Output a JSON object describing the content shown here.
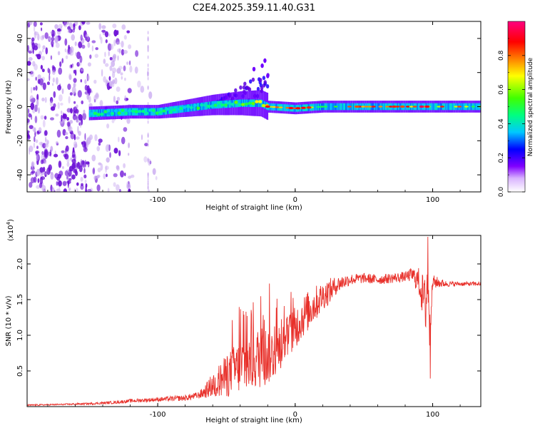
{
  "figure_title": "C2E4.2025.359.11.40.G31",
  "chart_data": [
    {
      "type": "heatmap",
      "title": "C2E4.2025.359.11.40.G31",
      "xlabel": "Height of straight line (km)",
      "ylabel": "Frequency (Hz)",
      "xlim": [
        -195,
        135
      ],
      "ylim": [
        -50,
        50
      ],
      "x_ticks": [
        -100,
        0,
        100
      ],
      "y_ticks": [
        -40,
        -20,
        0,
        20,
        40
      ],
      "colorbar": {
        "label": "Normalized spectral amplitude",
        "range": [
          0,
          1
        ],
        "ticks": [
          0.0,
          0.2,
          0.4,
          0.6,
          0.8
        ],
        "colors": [
          "#ffffff",
          "#8000ff",
          "#0000ff",
          "#00c8ff",
          "#00ff80",
          "#80ff00",
          "#ffff00",
          "#ff8000",
          "#ff0000",
          "#ff0080"
        ]
      },
      "series": [
        {
          "name": "noise scatter region",
          "x_range": [
            -195,
            -100
          ],
          "freq_range": [
            -50,
            50
          ],
          "amplitude": "0.1-0.3"
        },
        {
          "name": "main signal band",
          "x": [
            -150,
            -120,
            -100,
            -80,
            -60,
            -40,
            -25,
            -20,
            0,
            20,
            40,
            60,
            80,
            100,
            120,
            135
          ],
          "freq_center": [
            -4,
            -3,
            -3,
            -1,
            1,
            2,
            2,
            0,
            -1,
            0,
            0,
            0,
            0,
            0,
            0,
            0
          ],
          "peak_amplitude": [
            0.45,
            0.5,
            0.55,
            0.5,
            0.5,
            0.6,
            0.75,
            0.9,
            0.9,
            0.5,
            0.85,
            0.85,
            0.85,
            0.9,
            0.8,
            0.6
          ]
        }
      ],
      "colors": {
        "scatter": "#6a0dd6",
        "scatter_light": "#c8a8f0"
      }
    },
    {
      "type": "line",
      "xlabel": "Height of straight line (km)",
      "ylabel": "SNR (10 * v/v)",
      "y_exponent": "(x10",
      "y_exponent_power": "4",
      "y_exponent_close": ")",
      "xlim": [
        -195,
        135
      ],
      "ylim": [
        0,
        2.4
      ],
      "x_ticks": [
        -100,
        0,
        100
      ],
      "y_ticks": [
        0.5,
        1.0,
        1.5,
        2.0
      ],
      "y_tick_labels": [
        "0.5",
        "1.0",
        "1.5",
        "2.0"
      ],
      "series": [
        {
          "name": "SNR",
          "color": "#e8302a",
          "x": [
            -195,
            -170,
            -150,
            -130,
            -120,
            -100,
            -80,
            -70,
            -65,
            -60,
            -55,
            -50,
            -45,
            -40,
            -35,
            -30,
            -25,
            -20,
            -15,
            -10,
            -5,
            0,
            5,
            10,
            15,
            20,
            25,
            30,
            35,
            40,
            50,
            60,
            70,
            80,
            85,
            90,
            95,
            97,
            98,
            100,
            110,
            120,
            135
          ],
          "y": [
            0.02,
            0.03,
            0.04,
            0.06,
            0.08,
            0.1,
            0.12,
            0.16,
            0.22,
            0.3,
            0.36,
            0.42,
            0.5,
            0.56,
            0.6,
            0.65,
            0.7,
            0.72,
            0.75,
            0.85,
            1.0,
            1.1,
            1.25,
            1.35,
            1.45,
            1.55,
            1.62,
            1.7,
            1.75,
            1.78,
            1.8,
            1.78,
            1.8,
            1.82,
            1.85,
            1.75,
            1.4,
            2.2,
            1.0,
            1.75,
            1.72,
            1.72,
            1.72
          ],
          "noise_amp": [
            0.01,
            0.01,
            0.015,
            0.02,
            0.025,
            0.03,
            0.04,
            0.05,
            0.1,
            0.18,
            0.25,
            0.3,
            0.35,
            0.38,
            0.4,
            0.42,
            0.45,
            0.42,
            0.35,
            0.3,
            0.3,
            0.3,
            0.3,
            0.28,
            0.25,
            0.2,
            0.18,
            0.12,
            0.1,
            0.08,
            0.07,
            0.07,
            0.07,
            0.07,
            0.1,
            0.2,
            0.4,
            0.5,
            0.4,
            0.1,
            0.04,
            0.03,
            0.03
          ]
        }
      ]
    }
  ]
}
